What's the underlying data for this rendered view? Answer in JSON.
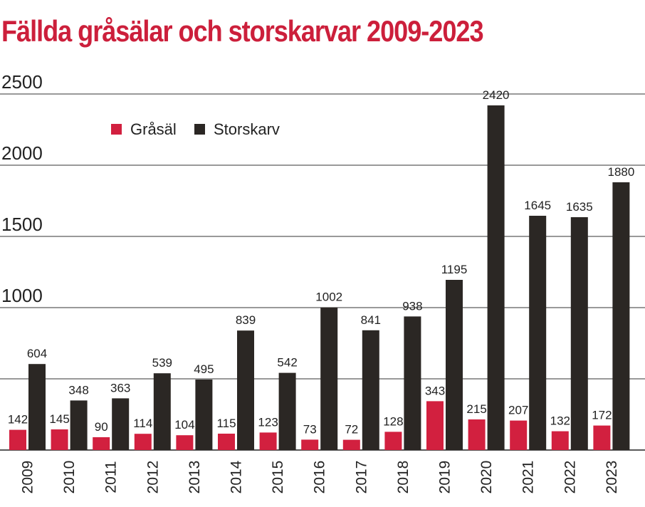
{
  "chart_data": {
    "type": "bar",
    "title": "Fällda gråsälar och storskarvar 2009-2023",
    "categories": [
      "2009",
      "2010",
      "2011",
      "2012",
      "2013",
      "2014",
      "2015",
      "2016",
      "2017",
      "2018",
      "2019",
      "2020",
      "2021",
      "2022",
      "2023"
    ],
    "series": [
      {
        "name": "Gråsäl",
        "color": "#d2203f",
        "values": [
          142,
          145,
          90,
          114,
          104,
          115,
          123,
          73,
          72,
          128,
          343,
          215,
          207,
          132,
          172
        ]
      },
      {
        "name": "Storskarv",
        "color": "#2b2724",
        "values": [
          604,
          348,
          363,
          539,
          495,
          839,
          542,
          1002,
          841,
          938,
          1195,
          2420,
          1645,
          1635,
          1880
        ]
      }
    ],
    "yticks": [
      "2500",
      "2000",
      "1500",
      "1000"
    ],
    "ylim": [
      0,
      2500
    ],
    "grid": true,
    "legend": "top-left",
    "data_labels": true
  }
}
